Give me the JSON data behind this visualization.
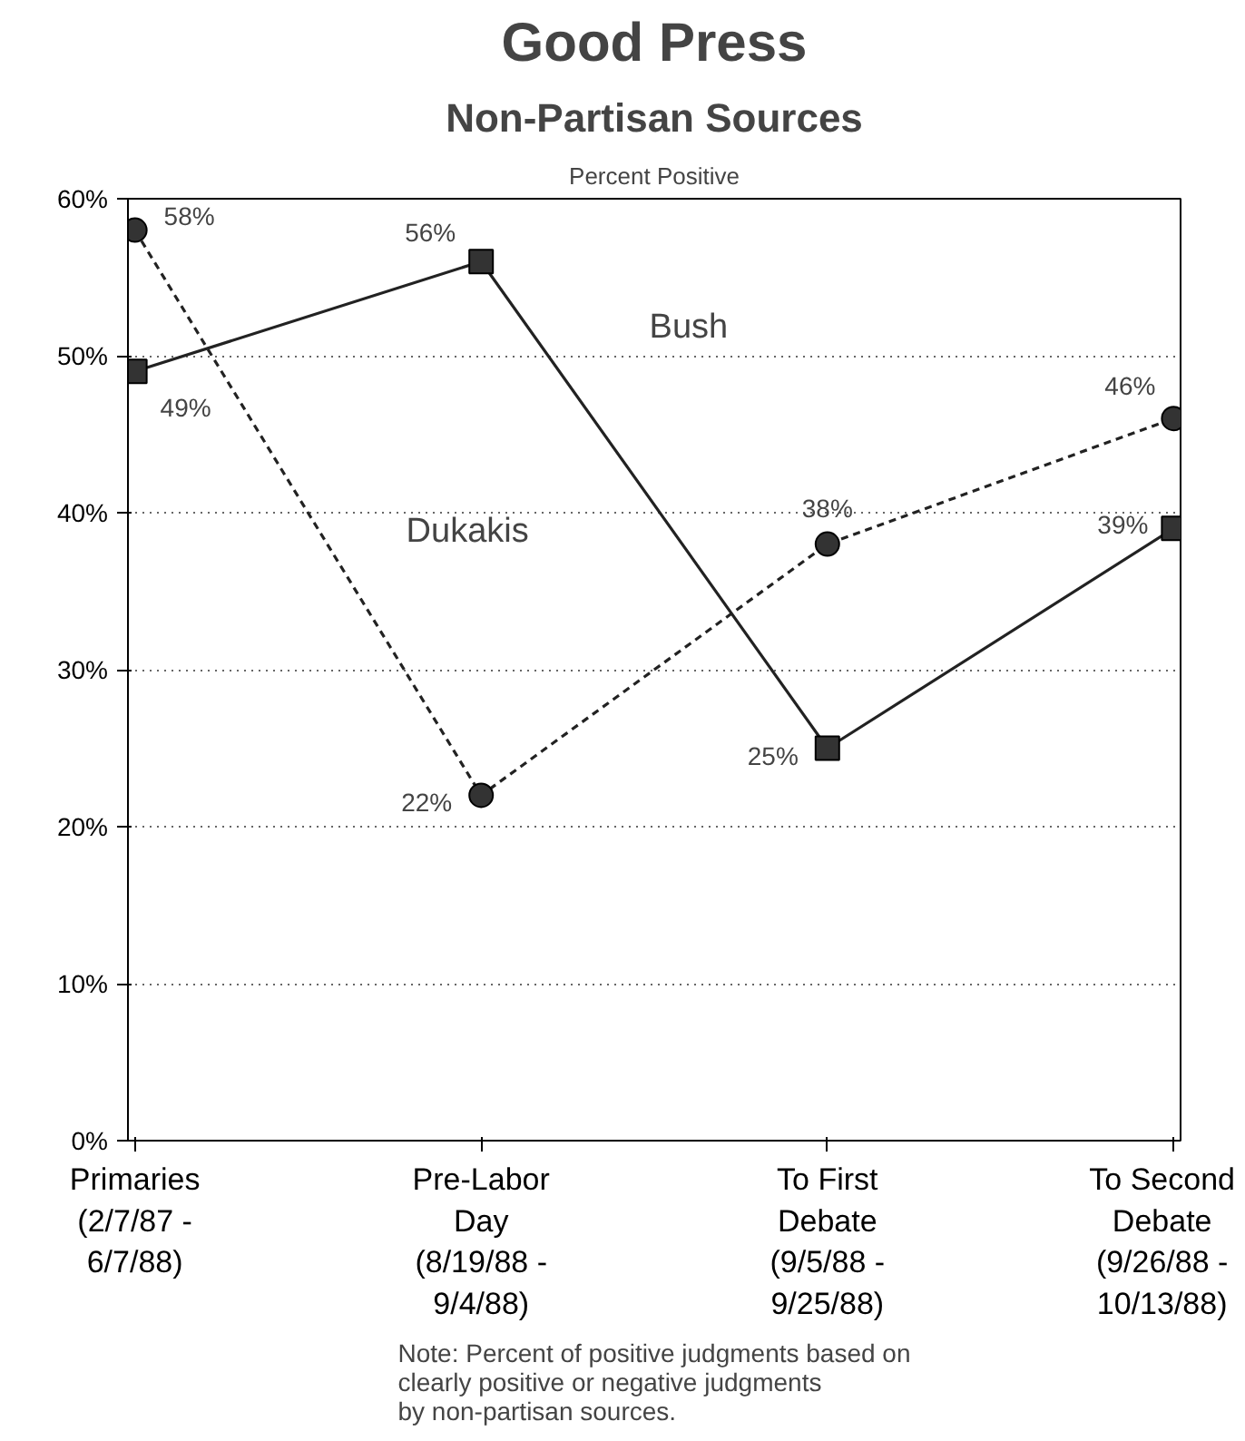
{
  "chart_data": {
    "type": "line",
    "title": "Good Press",
    "subtitle": "Non-Partisan Sources",
    "ylabel": "Percent Positive",
    "categories": [
      "Primaries\n(2/7/87 -\n6/7/88)",
      "Pre-Labor\nDay\n(8/19/88 -\n9/4/88)",
      "To First\nDebate\n(9/5/88 -\n9/25/88)",
      "To Second\nDebate\n(9/26/88 -\n10/13/88)"
    ],
    "series": [
      {
        "name": "Bush",
        "color": "#222222",
        "values": [
          49,
          56,
          25,
          39
        ],
        "value_labels": [
          "49%",
          "56%",
          "25%",
          "39%"
        ],
        "marker": "square",
        "line_style": "solid"
      },
      {
        "name": "Dukakis",
        "color": "#222222",
        "values": [
          58,
          22,
          38,
          46
        ],
        "value_labels": [
          "58%",
          "22%",
          "38%",
          "46%"
        ],
        "marker": "circle",
        "line_style": "dashed"
      }
    ],
    "ylim": [
      0,
      60
    ],
    "yticks": [
      {
        "value": 0,
        "label": "0%"
      },
      {
        "value": 10,
        "label": "10%"
      },
      {
        "value": 20,
        "label": "20%"
      },
      {
        "value": 30,
        "label": "30%"
      },
      {
        "value": 40,
        "label": "40%"
      },
      {
        "value": 50,
        "label": "50%"
      },
      {
        "value": 60,
        "label": "60%"
      }
    ],
    "grid": "y",
    "legend": false,
    "annotations": [
      "Note: Percent of positive judgments based on\n          clearly positive or negative judgments\n          by non-partisan sources."
    ]
  }
}
